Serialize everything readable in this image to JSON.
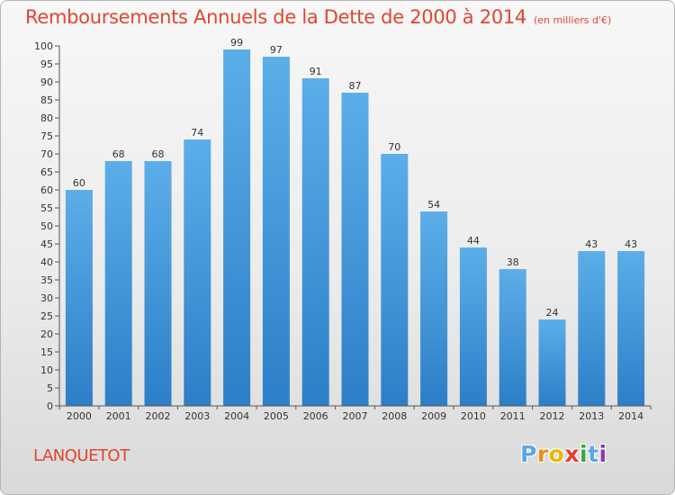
{
  "chart_data": {
    "type": "bar",
    "title": "Remboursements Annuels de la Dette de 2000 à 2014",
    "subtitle": "(en milliers d'€)",
    "xlabel": "",
    "ylabel": "",
    "categories": [
      "2000",
      "2001",
      "2002",
      "2003",
      "2004",
      "2005",
      "2006",
      "2007",
      "2008",
      "2009",
      "2010",
      "2011",
      "2012",
      "2013",
      "2014"
    ],
    "values": [
      60,
      68,
      68,
      74,
      99,
      97,
      91,
      87,
      70,
      54,
      44,
      38,
      24,
      43,
      43
    ],
    "ylim": [
      0,
      100
    ],
    "yticks": [
      0,
      5,
      10,
      15,
      20,
      25,
      30,
      35,
      40,
      45,
      50,
      55,
      60,
      65,
      70,
      75,
      80,
      85,
      90,
      95,
      100
    ],
    "grid": false,
    "data_labels": true,
    "bar_color": "#3a8fd8"
  },
  "place_name": "LANQUETOT",
  "logo": {
    "letters": [
      "P",
      "r",
      "o",
      "x",
      "i",
      "t",
      "i"
    ],
    "colors": [
      "#5aa7e6",
      "#f08a18",
      "#e6b800",
      "#e63a2a",
      "#3aa83a",
      "#5aa7e6",
      "#8a3ab8"
    ]
  },
  "colors": {
    "accent": "#e0462e",
    "axis": "#333333"
  }
}
